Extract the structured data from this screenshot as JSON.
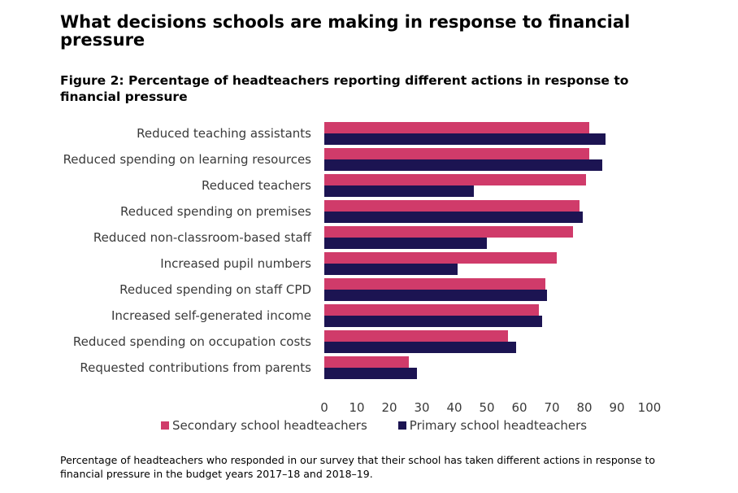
{
  "page": {
    "heading": "What decisions schools are making in response to financial pressure",
    "figure_title": "Figure 2: Percentage of headteachers reporting different actions in response to financial pressure",
    "caption": "Percentage of headteachers who responded in our survey that their school has taken different actions in response to financial pressure in the budget years 2017–18 and 2018–19."
  },
  "chart_data": {
    "type": "bar",
    "orientation": "horizontal",
    "title": "Figure 2: Percentage of headteachers reporting different actions in response to financial pressure",
    "xlabel": "",
    "ylabel": "",
    "xlim": [
      0,
      100
    ],
    "x_ticks": [
      0,
      10,
      20,
      30,
      40,
      50,
      60,
      70,
      80,
      90,
      100
    ],
    "grid": false,
    "legend_position": "bottom",
    "categories": [
      "Reduced teaching assistants",
      "Reduced spending on learning resources",
      "Reduced teachers",
      "Reduced spending on premises",
      "Reduced non-classroom-based staff",
      "Increased pupil numbers",
      "Reduced spending on staff CPD",
      "Increased self-generated income",
      "Reduced spending on occupation costs",
      "Requested contributions from parents"
    ],
    "series": [
      {
        "name": "Secondary school headteachers",
        "color": "#d03b6a",
        "values": [
          81.5,
          81.5,
          80.5,
          78.5,
          76.5,
          71.5,
          68,
          66,
          56.5,
          26
        ]
      },
      {
        "name": "Primary school headteachers",
        "color": "#1c1452",
        "values": [
          86.5,
          85.5,
          46,
          79.5,
          50,
          41,
          68.5,
          67,
          59,
          28.5
        ]
      }
    ]
  }
}
